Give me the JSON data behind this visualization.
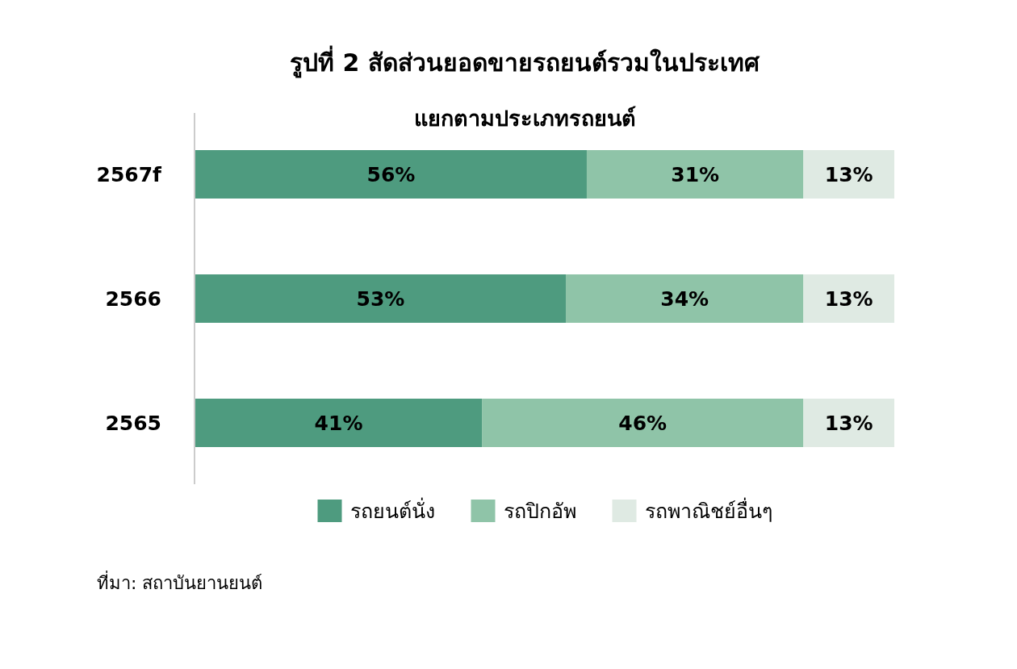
{
  "chart_data": {
    "type": "bar",
    "orientation": "horizontal",
    "stacked": true,
    "legend": "bottom",
    "title": "รูปที่ 2 สัดส่วนยอดขายรถยนต์รวมในประเทศ",
    "subtitle": "แยกตามประเภทรถยนต์",
    "categories": [
      "2567f",
      "2566",
      "2565"
    ],
    "series": [
      {
        "name": "รถยนต์นั่ง",
        "color": "#4e9b7f",
        "values": [
          56,
          53,
          41
        ],
        "value_labels": [
          "56%",
          "53%",
          "41%"
        ]
      },
      {
        "name": "รถปิกอัพ",
        "color": "#8fc4a8",
        "values": [
          31,
          34,
          46
        ],
        "value_labels": [
          "31%",
          "34%",
          "46%"
        ]
      },
      {
        "name": "รถพาณิชย์อื่นๆ",
        "color": "#dfeae3",
        "values": [
          13,
          13,
          13
        ],
        "value_labels": [
          "13%",
          "13%",
          "13%"
        ]
      }
    ],
    "annotations": [
      "ที่มา: สถาบันยานยนต์"
    ]
  }
}
